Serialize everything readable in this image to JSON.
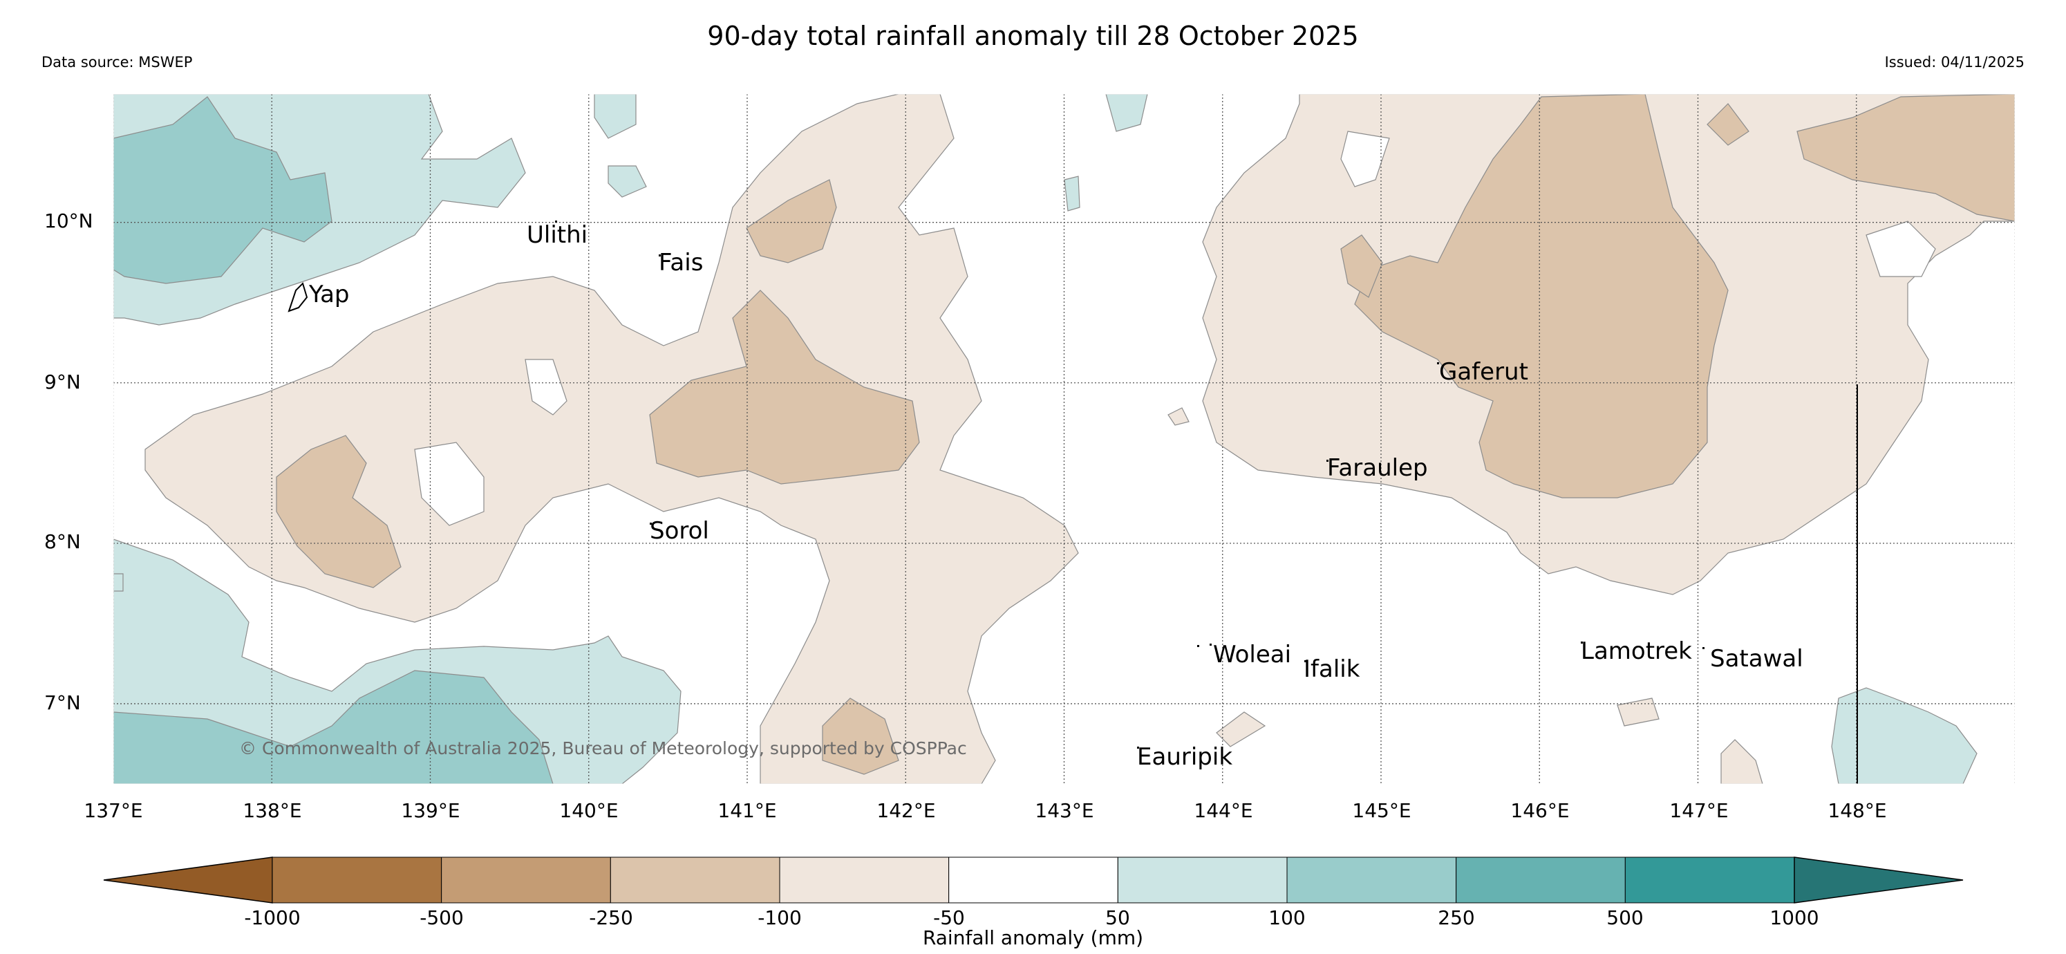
{
  "header": {
    "title": "90-day total rainfall anomaly till 28 October 2025",
    "source": "Data source: MSWEP",
    "issued": "Issued: 04/11/2025"
  },
  "map": {
    "lon_range": [
      137,
      149
    ],
    "lat_range": [
      6.5,
      10.8
    ],
    "grid": true,
    "lat_ticks": [
      "10°N",
      "9°N",
      "8°N",
      "7°N"
    ],
    "lon_ticks": [
      "137°E",
      "138°E",
      "139°E",
      "140°E",
      "141°E",
      "142°E",
      "143°E",
      "144°E",
      "145°E",
      "146°E",
      "147°E",
      "148°E"
    ],
    "islands": [
      {
        "name": "Ulithi"
      },
      {
        "name": "Fais"
      },
      {
        "name": "Yap"
      },
      {
        "name": "Gaferut"
      },
      {
        "name": "Faraulep"
      },
      {
        "name": "Sorol"
      },
      {
        "name": "Woleai"
      },
      {
        "name": "Ifalik"
      },
      {
        "name": "Lamotrek"
      },
      {
        "name": "Satawal"
      },
      {
        "name": "Eauripik"
      }
    ],
    "copyright": "© Commonwealth of Australia 2025, Bureau of Meteorology, supported by COSPPac"
  },
  "colorbar": {
    "title": "Rainfall anomaly (mm)",
    "labels": [
      "-1000",
      "-500",
      "-250",
      "-100",
      "-50",
      "50",
      "100",
      "250",
      "500",
      "1000"
    ],
    "colors": [
      "#a97541",
      "#c49c74",
      "#dcc4ab",
      "#f0e6dd",
      "#ffffff",
      "#cce5e4",
      "#99cccb",
      "#66b2b1",
      "#339998"
    ],
    "extend_low_color": "#935b26",
    "extend_high_color": "#267575"
  }
}
